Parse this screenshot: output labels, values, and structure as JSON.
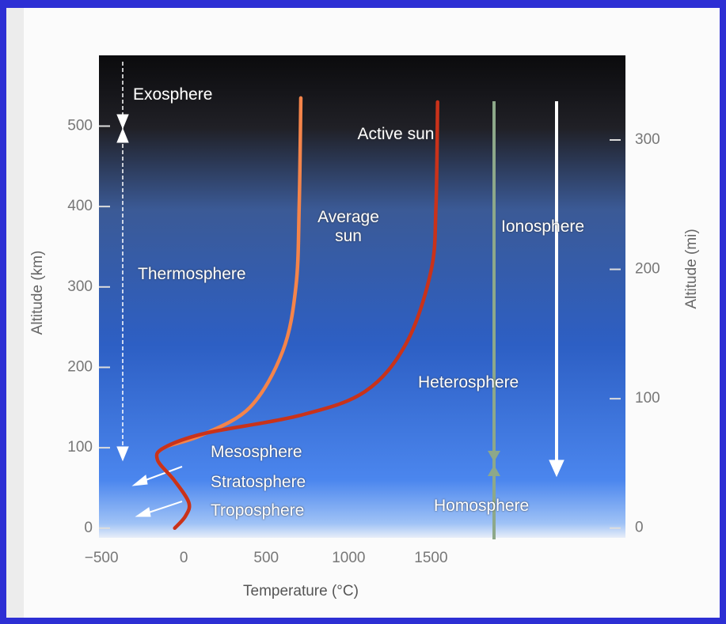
{
  "chart_data": {
    "type": "line",
    "xlabel": "Temperature (°C)",
    "ylabel": "Altitude (km)",
    "y2label": "Altitude (mi)",
    "xlim": [
      -515,
      2680
    ],
    "ylim": [
      -12,
      588
    ],
    "y2lim": [
      -7.5,
      365.4
    ],
    "xticks": [
      {
        "value": -500,
        "label": "−500"
      },
      0,
      500,
      1000,
      1500
    ],
    "yticks": [
      0,
      100,
      200,
      300,
      400,
      500
    ],
    "y2ticks": [
      0,
      100,
      200,
      300
    ],
    "series": [
      {
        "name": "Average sun",
        "color": "#f4844a",
        "x": [
          -55,
          10,
          30,
          -60,
          -160,
          -120,
          100,
          400,
          600,
          680,
          700,
          710
        ],
        "values": [
          0,
          15,
          32,
          60,
          85,
          100,
          115,
          150,
          220,
          300,
          400,
          535
        ]
      },
      {
        "name": "Active sun",
        "color": "#c9321a",
        "x": [
          -55,
          10,
          30,
          -60,
          -160,
          -120,
          130,
          700,
          1100,
          1350,
          1500,
          1530,
          1540
        ],
        "values": [
          0,
          15,
          32,
          60,
          85,
          100,
          118,
          140,
          170,
          230,
          320,
          400,
          530
        ]
      }
    ],
    "annotations": [
      "Exosphere",
      "Thermosphere",
      "Mesosphere",
      "Stratosphere",
      "Troposphere",
      "Ionosphere",
      "Heterosphere",
      "Homosphere"
    ]
  }
}
